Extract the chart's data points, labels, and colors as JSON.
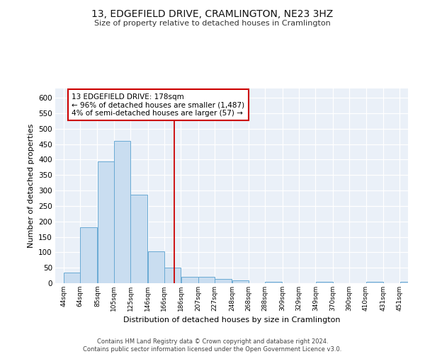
{
  "title": "13, EDGEFIELD DRIVE, CRAMLINGTON, NE23 3HZ",
  "subtitle": "Size of property relative to detached houses in Cramlington",
  "xlabel": "Distribution of detached houses by size in Cramlington",
  "ylabel": "Number of detached properties",
  "bar_color": "#c9ddf0",
  "bar_edge_color": "#6aaad4",
  "background_color": "#eaf0f8",
  "grid_color": "#ffffff",
  "vline_color": "#cc0000",
  "annotation_line1": "13 EDGEFIELD DRIVE: 178sqm",
  "annotation_line2": "← 96% of detached houses are smaller (1,487)",
  "annotation_line3": "4% of semi-detached houses are larger (57) →",
  "annotation_box_color": "#ffffff",
  "annotation_box_edge": "#cc0000",
  "footer": "Contains HM Land Registry data © Crown copyright and database right 2024.\nContains public sector information licensed under the Open Government Licence v3.0.",
  "bins": [
    44,
    64,
    85,
    105,
    125,
    146,
    166,
    186,
    207,
    227,
    248,
    268,
    288,
    309,
    329,
    349,
    370,
    390,
    410,
    431,
    451
  ],
  "values": [
    35,
    181,
    394,
    460,
    287,
    103,
    50,
    20,
    20,
    14,
    9,
    0,
    5,
    0,
    0,
    5,
    0,
    0,
    4,
    0,
    5
  ],
  "ylim": [
    0,
    630
  ],
  "yticks": [
    0,
    50,
    100,
    150,
    200,
    250,
    300,
    350,
    400,
    450,
    500,
    550,
    600
  ]
}
